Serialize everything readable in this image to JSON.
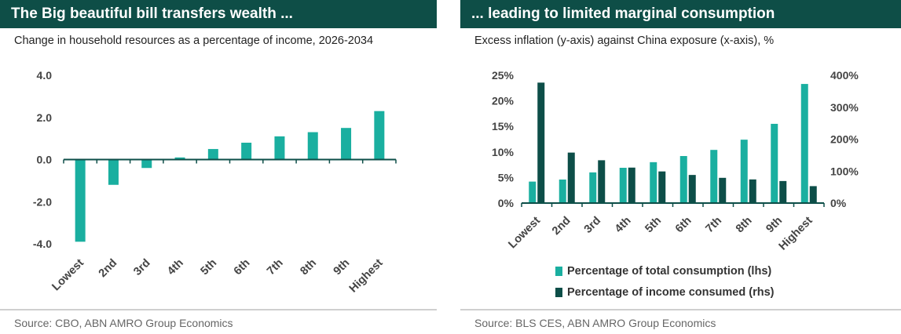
{
  "left_panel": {
    "title": "The Big beautiful bill transfers wealth ...",
    "subtitle": "Change in household resources as a percentage of income, 2026-2034",
    "source": "Source: CBO, ABN AMRO Group Economics"
  },
  "right_panel": {
    "title": "... leading to limited marginal consumption",
    "subtitle": "Excess inflation (y-axis) against China exposure (x-axis), %",
    "source": "Source: BLS CES, ABN AMRO Group Economics"
  },
  "colors": {
    "teal": "#1aafa0",
    "dark_teal": "#0d4e48",
    "title_bg": "#0e4e47",
    "axis": "#0d4e48"
  },
  "chart_data": [
    {
      "type": "bar",
      "categories": [
        "Lowest",
        "2nd",
        "3rd",
        "4th",
        "5th",
        "6th",
        "7th",
        "8th",
        "9th",
        "Highest"
      ],
      "values": [
        -3.9,
        -1.2,
        -0.4,
        0.1,
        0.5,
        0.8,
        1.1,
        1.3,
        1.5,
        2.3
      ],
      "yticks": [
        "4.0",
        "2.0",
        "0.0",
        "-2.0",
        "-4.0"
      ],
      "ytick_values": [
        4,
        2,
        0,
        -2,
        -4
      ],
      "ylim": [
        -4,
        4
      ],
      "grid": false
    },
    {
      "type": "bar",
      "categories": [
        "Lowest",
        "2nd",
        "3rd",
        "4th",
        "5th",
        "6th",
        "7th",
        "8th",
        "9th",
        "Highest"
      ],
      "series": [
        {
          "name": "Percentage of total consumption (lhs)",
          "axis": "left",
          "values": [
            4.2,
            4.6,
            6.0,
            6.9,
            8.0,
            9.2,
            10.4,
            12.4,
            15.5,
            23.3
          ]
        },
        {
          "name": "Percentage of income consumed (rhs)",
          "axis": "right",
          "values": [
            377,
            158,
            134,
            111,
            99,
            88,
            79,
            74,
            69,
            53
          ]
        }
      ],
      "yticks_left": [
        "25%",
        "20%",
        "15%",
        "10%",
        "5%",
        "0%"
      ],
      "ytick_values_left": [
        25,
        20,
        15,
        10,
        5,
        0
      ],
      "ylim_left": [
        0,
        25
      ],
      "yticks_right": [
        "400%",
        "300%",
        "200%",
        "100%",
        "0%"
      ],
      "ytick_values_right": [
        400,
        300,
        200,
        100,
        0
      ],
      "ylim_right": [
        0,
        400
      ],
      "legend_position": "bottom",
      "grid": false
    }
  ]
}
